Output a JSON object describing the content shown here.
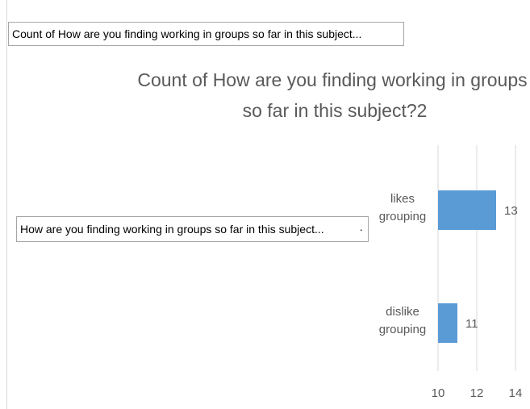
{
  "chart_data": {
    "type": "bar",
    "orientation": "horizontal",
    "report_filter_button": "Count of How are you finding working in groups so far in this subject...",
    "axis_field_button": "How are you finding working in groups so far in this subject...",
    "title": [
      "Count of How are you finding working in groups",
      "so far in this subject?2"
    ],
    "categories": [
      "likes grouping",
      "dislike grouping"
    ],
    "values": [
      13,
      11
    ],
    "color": "#5b9bd5",
    "xlim": [
      10,
      14
    ],
    "xticks": [
      10,
      12,
      14
    ],
    "grid": true
  }
}
